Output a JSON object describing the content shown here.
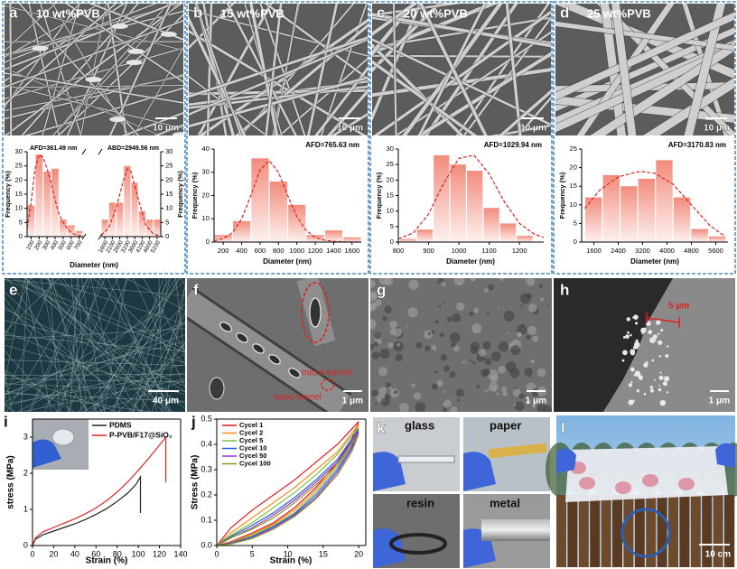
{
  "figure": {
    "panel_labels": [
      "a",
      "b",
      "c",
      "d",
      "e",
      "f",
      "g",
      "h",
      "i",
      "j",
      "k",
      "l"
    ],
    "image_titles": [
      "10 wt%PVB",
      "15 wt%PVB",
      "20 wt%PVB",
      "25 wt%PVB"
    ],
    "scale_bars": [
      "10 μm",
      "10 μm",
      "10 μm",
      "10 μm",
      "40 μm",
      "1 μm",
      "1 μm",
      "1 μm",
      "5 μm",
      "10 cm"
    ],
    "callouts": [
      "micro-tunnel",
      "nano-tunnel"
    ],
    "photo_labels": [
      "glass",
      "paper",
      "resin",
      "metal"
    ]
  },
  "chart_data": [
    {
      "type": "histogram",
      "ylabel": "Frequency (%)",
      "xlabel": "Diameter (nm)",
      "annotation": "AFD=361.49 nm",
      "bins": [
        50,
        150,
        250,
        350,
        450,
        550,
        650,
        750
      ],
      "values": [
        11,
        29,
        23,
        24,
        6,
        4,
        2
      ],
      "color": "#f28c7c",
      "fit": {
        "x": [
          50,
          100,
          150,
          200,
          250,
          300,
          350,
          400,
          450,
          500,
          550,
          600,
          650,
          700,
          750
        ],
        "values": [
          3,
          12,
          24,
          29,
          28,
          24,
          19,
          13,
          8,
          5,
          3,
          1.5,
          0.7,
          0.3,
          0.1
        ],
        "color": "#d62728"
      },
      "xlim": [
        50,
        750
      ],
      "xticks": [
        100,
        200,
        300,
        400,
        500,
        600,
        700
      ],
      "ylim": [
        0,
        30
      ],
      "yticks": [
        0,
        5,
        10,
        15,
        20,
        25,
        30
      ]
    },
    {
      "type": "histogram",
      "ylabel": "Frequency (%)",
      "annotation": "ABD=2949.56 nm",
      "bins": [
        1350,
        1850,
        2350,
        2850,
        3350,
        3850,
        4350,
        4850,
        5350
      ],
      "values": [
        6,
        12,
        12,
        25,
        19,
        9,
        6,
        6
      ],
      "color": "#f28c7c",
      "fit": {
        "x": [
          1350,
          1850,
          2350,
          2850,
          3100,
          3350,
          3850,
          4350,
          4850,
          5350
        ],
        "values": [
          0.5,
          3,
          10,
          20,
          24,
          23,
          13,
          4,
          1,
          0.2
        ],
        "color": "#d62728"
      },
      "xlim": [
        1350,
        5350
      ],
      "xticks": [
        1600,
        2100,
        2600,
        3100,
        3600,
        4100,
        4600,
        5100
      ],
      "ylim": [
        0,
        30
      ],
      "yticks": [
        0,
        5,
        10,
        15,
        20,
        25,
        30
      ]
    },
    {
      "type": "histogram",
      "ylabel": "Frequency (%)",
      "xlabel": "Diameter (nm)",
      "annotation": "AFD=765.63 nm",
      "bins": [
        100,
        300,
        500,
        700,
        900,
        1100,
        1300,
        1500,
        1700
      ],
      "values": [
        3,
        9,
        36,
        26,
        16,
        3,
        5,
        2
      ],
      "color": "#f28c7c",
      "fit": {
        "x": [
          100,
          200,
          300,
          400,
          500,
          600,
          700,
          800,
          900,
          1000,
          1100,
          1200,
          1300,
          1400,
          1500,
          1600,
          1700
        ],
        "values": [
          0.5,
          1.5,
          4,
          10,
          20,
          31,
          35,
          30,
          20,
          11,
          5,
          2,
          0.8,
          0.3,
          0.1,
          0,
          0
        ],
        "color": "#d62728"
      },
      "xlim": [
        100,
        1700
      ],
      "xticks": [
        200,
        400,
        600,
        800,
        1000,
        1200,
        1400,
        1600
      ],
      "ylim": [
        0,
        40
      ],
      "yticks": [
        0,
        10,
        20,
        30,
        40
      ]
    },
    {
      "type": "histogram",
      "ylabel": "Frequency (%)",
      "xlabel": "Diameter (nm)",
      "annotation": "AFD=1029.94 nm",
      "bins": [
        805,
        860,
        915,
        970,
        1025,
        1080,
        1135,
        1190,
        1245
      ],
      "values": [
        1,
        4,
        28,
        25,
        23,
        11,
        6,
        2
      ],
      "color": "#f28c7c",
      "fit": {
        "x": [
          800,
          850,
          900,
          950,
          1000,
          1050,
          1100,
          1150,
          1200,
          1250,
          1280
        ],
        "values": [
          1,
          3,
          9,
          19,
          27,
          28,
          22,
          13,
          6,
          2.5,
          1.5
        ],
        "color": "#d62728"
      },
      "xlim": [
        800,
        1280
      ],
      "xticks": [
        800,
        900,
        1000,
        1100,
        1200
      ],
      "ylim": [
        0,
        30
      ],
      "yticks": [
        0,
        5,
        10,
        15,
        20,
        25,
        30
      ]
    },
    {
      "type": "histogram",
      "ylabel": "Frequency (%)",
      "xlabel": "Diameter (nm)",
      "annotation": "AFD=3170.83 nm",
      "bins": [
        1300,
        1880,
        2460,
        3040,
        3620,
        4200,
        4780,
        5360,
        5940
      ],
      "values": [
        12,
        18,
        15,
        17,
        22,
        12,
        3.5,
        1.5
      ],
      "color": "#f28c7c",
      "fit": {
        "x": [
          1300,
          1800,
          2400,
          3000,
          3200,
          3600,
          4200,
          4800,
          5400,
          5900
        ],
        "values": [
          9,
          14,
          17.5,
          18.8,
          18.9,
          18.5,
          15.5,
          10,
          4.5,
          1.5
        ],
        "color": "#d62728"
      },
      "xlim": [
        1200,
        6000
      ],
      "xticks": [
        1600,
        2400,
        3200,
        4000,
        4800,
        5600
      ],
      "ylim": [
        0,
        25
      ],
      "yticks": [
        0,
        5,
        10,
        15,
        20,
        25
      ]
    },
    {
      "type": "line",
      "ylabel": "stress (MPa)",
      "xlabel": "Strain (%)",
      "legend": "upper left",
      "series": [
        {
          "name": "PDMS",
          "color": "#222222",
          "x": [
            0,
            3,
            10,
            20,
            30,
            40,
            50,
            60,
            70,
            80,
            90,
            98,
            102,
            102
          ],
          "values": [
            0,
            0.18,
            0.3,
            0.4,
            0.5,
            0.6,
            0.72,
            0.86,
            1.02,
            1.22,
            1.45,
            1.7,
            1.9,
            0.9
          ]
        },
        {
          "name": "P-PVB/F17@SiO₂",
          "color": "#e3262b",
          "x": [
            0,
            3,
            10,
            20,
            30,
            40,
            50,
            60,
            70,
            80,
            90,
            100,
            110,
            120,
            126,
            126
          ],
          "values": [
            0,
            0.22,
            0.38,
            0.5,
            0.62,
            0.74,
            0.88,
            1.04,
            1.24,
            1.48,
            1.76,
            2.08,
            2.42,
            2.78,
            3.0,
            1.75
          ]
        }
      ],
      "xlim": [
        0,
        140
      ],
      "xticks": [
        0,
        20,
        40,
        60,
        80,
        100,
        120,
        140
      ],
      "ylim": [
        0,
        3.5
      ],
      "yticks": [
        0,
        1,
        2,
        3
      ]
    },
    {
      "type": "line",
      "ylabel": "Stress (MPa)",
      "xlabel": "Strain (%)",
      "legend": "upper left",
      "series": [
        {
          "name": "Cycel 1",
          "color": "#e41a1c",
          "x": [
            0,
            2,
            5,
            8,
            11,
            14,
            17,
            20,
            19,
            17,
            14,
            11,
            8,
            5,
            2,
            0
          ],
          "values": [
            0,
            0.07,
            0.14,
            0.2,
            0.26,
            0.33,
            0.4,
            0.49,
            0.42,
            0.33,
            0.23,
            0.15,
            0.09,
            0.05,
            0.015,
            0
          ]
        },
        {
          "name": "Cycel 2",
          "color": "#ff8c1a",
          "x": [
            0,
            2,
            5,
            8,
            11,
            14,
            17,
            20,
            19,
            17,
            14,
            11,
            8,
            5,
            2,
            0
          ],
          "values": [
            0,
            0.05,
            0.11,
            0.17,
            0.23,
            0.3,
            0.37,
            0.48,
            0.41,
            0.32,
            0.22,
            0.14,
            0.085,
            0.045,
            0.012,
            0
          ]
        },
        {
          "name": "Cycel 5",
          "color": "#7cc242",
          "x": [
            0,
            2,
            5,
            8,
            11,
            14,
            17,
            20,
            19,
            17,
            14,
            11,
            8,
            5,
            2,
            0
          ],
          "values": [
            0,
            0.04,
            0.09,
            0.15,
            0.21,
            0.28,
            0.36,
            0.47,
            0.4,
            0.31,
            0.21,
            0.13,
            0.08,
            0.04,
            0.01,
            0
          ]
        },
        {
          "name": "Cycel 10",
          "color": "#1f5fd6",
          "x": [
            0,
            2,
            5,
            8,
            11,
            14,
            17,
            20,
            19,
            17,
            14,
            11,
            8,
            5,
            2,
            0
          ],
          "values": [
            0,
            0.035,
            0.08,
            0.13,
            0.19,
            0.26,
            0.34,
            0.46,
            0.39,
            0.3,
            0.2,
            0.125,
            0.075,
            0.035,
            0.01,
            0
          ]
        },
        {
          "name": "Cycel 50",
          "color": "#9b30d9",
          "x": [
            0,
            2,
            5,
            8,
            11,
            14,
            17,
            20,
            19,
            17,
            14,
            11,
            8,
            5,
            2,
            0
          ],
          "values": [
            0,
            0.03,
            0.07,
            0.12,
            0.18,
            0.25,
            0.33,
            0.45,
            0.38,
            0.29,
            0.19,
            0.12,
            0.07,
            0.03,
            0.008,
            0
          ]
        },
        {
          "name": "Cycel 100",
          "color": "#8a9a1e",
          "x": [
            0,
            2,
            5,
            8,
            11,
            14,
            17,
            20,
            19,
            17,
            14,
            11,
            8,
            5,
            2,
            0
          ],
          "values": [
            0,
            0.03,
            0.065,
            0.11,
            0.17,
            0.24,
            0.32,
            0.44,
            0.37,
            0.28,
            0.185,
            0.115,
            0.065,
            0.028,
            0.006,
            0
          ]
        }
      ],
      "xlim": [
        0,
        21
      ],
      "xticks": [
        0,
        5,
        10,
        15,
        20
      ],
      "ylim": [
        0,
        0.5
      ],
      "yticks": [
        {
          "value": 0,
          "label": "0.0"
        },
        0.1,
        0.2,
        0.3,
        0.4,
        0.5
      ]
    }
  ]
}
